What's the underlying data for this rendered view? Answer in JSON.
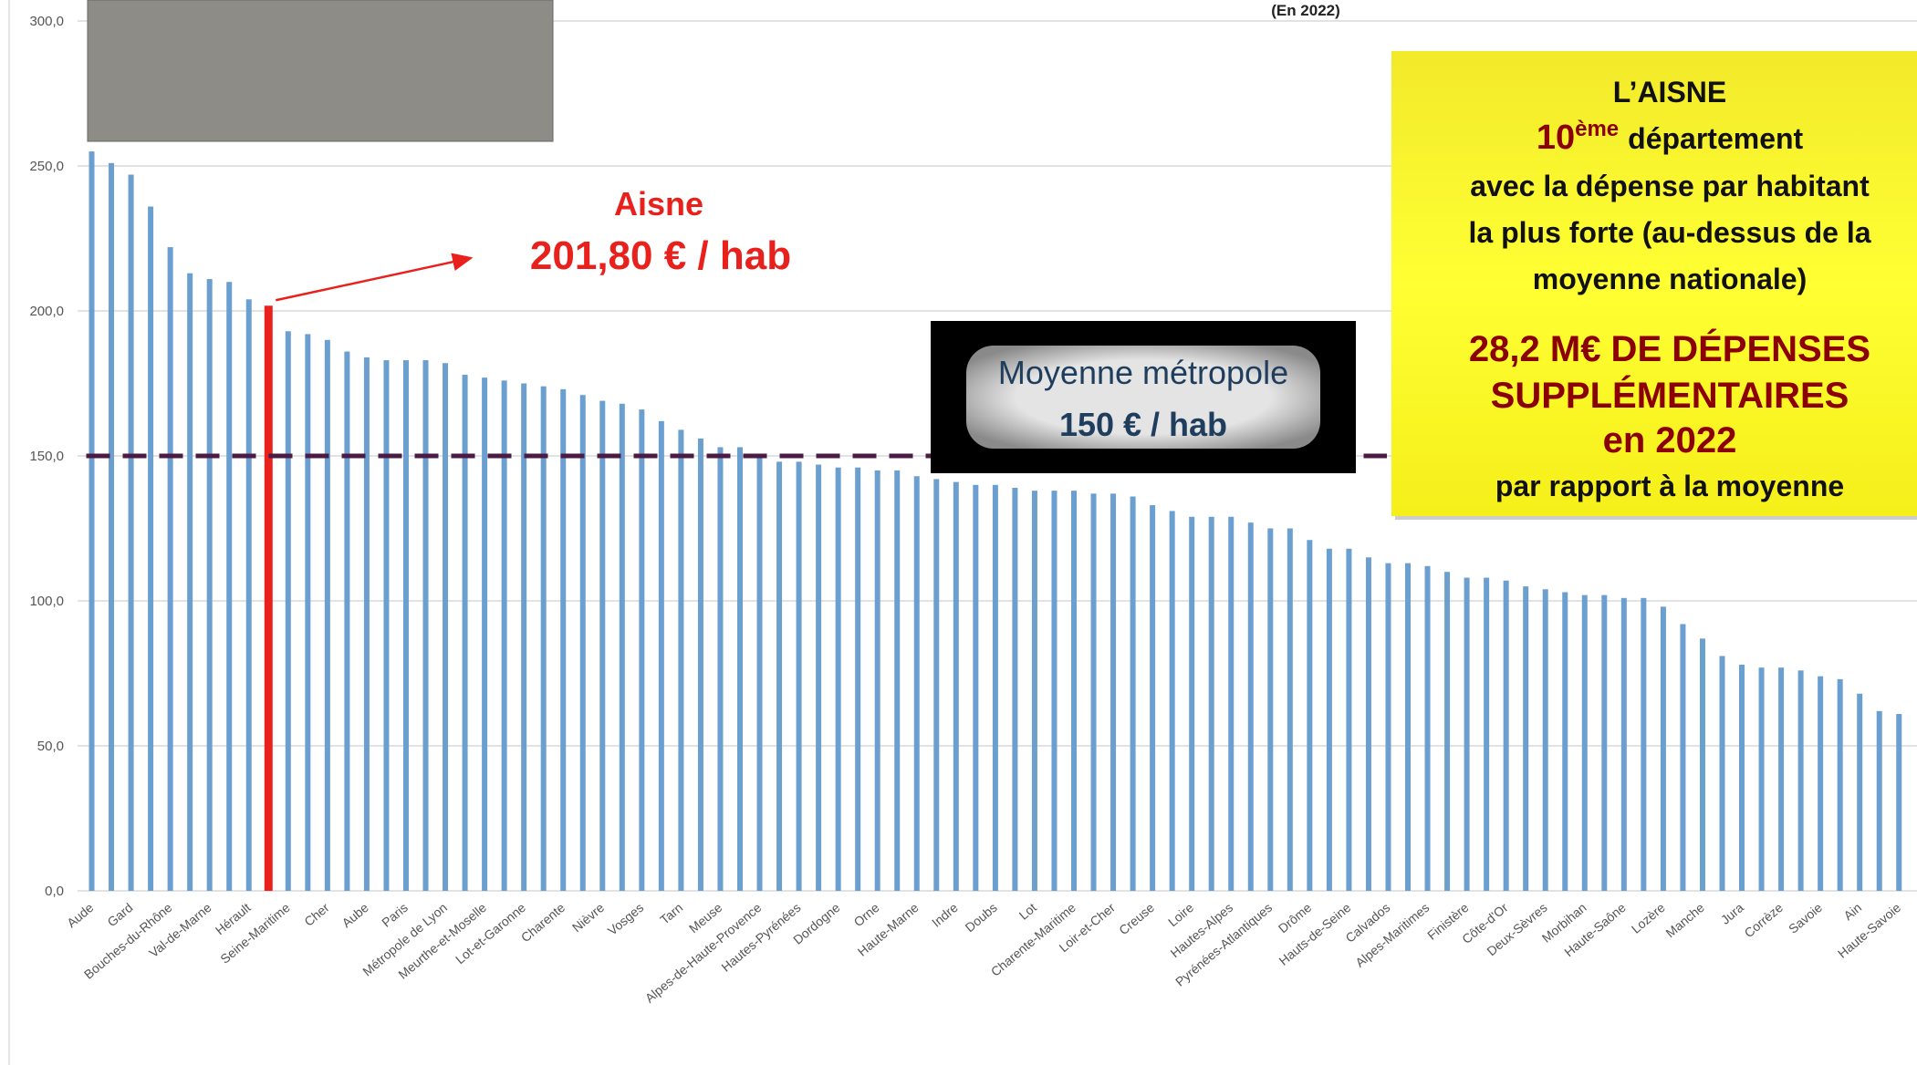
{
  "chart_data": {
    "type": "bar",
    "subtitle": "(En 2022)",
    "categories": [
      "Aude",
      null,
      "Gard",
      null,
      "Bouches-du-Rhône",
      null,
      "Val-de-Marne",
      null,
      "Hérault",
      null,
      "Seine-Maritime",
      null,
      "Cher",
      null,
      "Aube",
      null,
      "Paris",
      null,
      "Métropole de Lyon",
      null,
      "Meurthe-et-Moselle",
      null,
      "Lot-et-Garonne",
      null,
      "Charente",
      null,
      "Nièvre",
      null,
      "Vosges",
      null,
      "Tarn",
      null,
      "Meuse",
      null,
      "Alpes-de-Haute-Provence",
      null,
      "Hautes-Pyrénées",
      null,
      "Dordogne",
      null,
      "Orne",
      null,
      "Haute-Marne",
      null,
      "Indre",
      null,
      "Doubs",
      null,
      "Lot",
      null,
      "Charente-Maritime",
      null,
      "Loir-et-Cher",
      null,
      "Creuse",
      null,
      "Loire",
      null,
      "Hautes-Alpes",
      null,
      "Pyrénées-Atlantiques",
      null,
      "Drôme",
      null,
      "Hauts-de-Seine",
      null,
      "Calvados",
      null,
      "Alpes-Maritimes",
      null,
      "Finistère",
      null,
      "Côte-d'Or",
      null,
      "Deux-Sèvres",
      null,
      "Morbihan",
      null,
      "Haute-Saône",
      null,
      "Lozère",
      null,
      "Manche",
      null,
      "Jura",
      null,
      "Corrèze",
      null,
      "Savoie",
      null,
      "Ain",
      null,
      "Haute-Savoie"
    ],
    "values": [
      255,
      251,
      247,
      236,
      222,
      213,
      211,
      210,
      204,
      201.8,
      193,
      192,
      190,
      186,
      184,
      183,
      183,
      183,
      182,
      178,
      177,
      176,
      175,
      174,
      173,
      171,
      169,
      168,
      166,
      162,
      159,
      156,
      153,
      153,
      150,
      148,
      148,
      147,
      146,
      146,
      145,
      145,
      143,
      142,
      141,
      140,
      140,
      139,
      138,
      138,
      138,
      137,
      137,
      136,
      133,
      131,
      129,
      129,
      129,
      127,
      125,
      125,
      121,
      118,
      118,
      115,
      113,
      113,
      112,
      110,
      108,
      108,
      107,
      105,
      104,
      103,
      102,
      102,
      101,
      101,
      98,
      92,
      87,
      81,
      78,
      77,
      77,
      76,
      74,
      73,
      68,
      62,
      61
    ],
    "color": "#6b9fcf",
    "ylim": [
      0,
      300
    ],
    "yticks": [
      {
        "value": 0,
        "label": "0,0"
      },
      {
        "value": 50,
        "label": "50,0"
      },
      {
        "value": 100,
        "label": "100,0"
      },
      {
        "value": 150,
        "label": "150,0"
      },
      {
        "value": 200,
        "label": "200,0"
      },
      {
        "value": 250,
        "label": "250,0"
      },
      {
        "value": 300,
        "label": "300,0"
      }
    ],
    "grid": true,
    "highlight": {
      "index": 9,
      "color": "#e8211d",
      "label": "Aisne",
      "value_label": "201,80 € / hab"
    },
    "average": {
      "value": 150,
      "color": "#4b1a45",
      "label": "Moyenne métropole",
      "value_label": "150 € / hab"
    }
  },
  "callout": {
    "title": "L’AISNE",
    "rank": "10",
    "rank_suffix": "ème",
    "rank_text": "département",
    "lines": [
      "avec la dépense par habitant",
      "la plus forte (au-dessus de la",
      "moyenne nationale)"
    ],
    "headline": [
      "28,2 M€ DE DÉPENSES",
      "SUPPLÉMENTAIRES",
      "en 2022"
    ],
    "footer": "par rapport à la moyenne"
  }
}
